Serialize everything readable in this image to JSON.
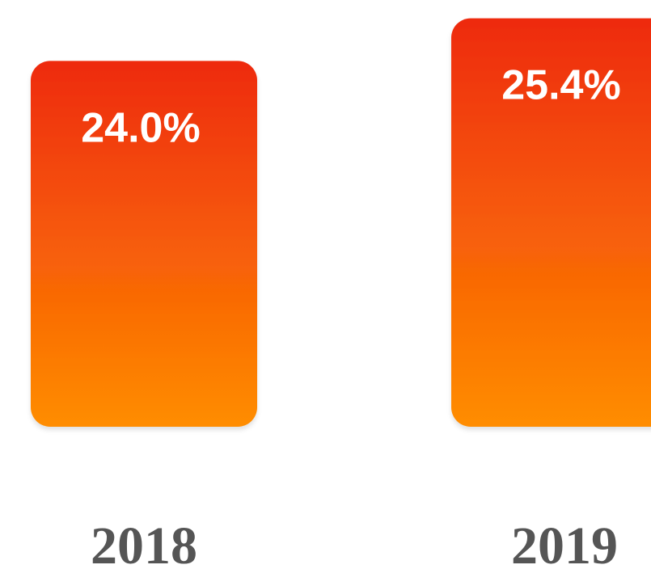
{
  "chart_data": {
    "type": "bar",
    "categories": [
      "2018",
      "2019"
    ],
    "values": [
      24.0,
      25.4
    ],
    "value_labels": [
      "24.0%",
      "25.4%"
    ],
    "color": "#f4500c",
    "gradient": [
      "#ee2a10",
      "#ff8d00"
    ],
    "ylim": [
      12,
      26
    ]
  }
}
